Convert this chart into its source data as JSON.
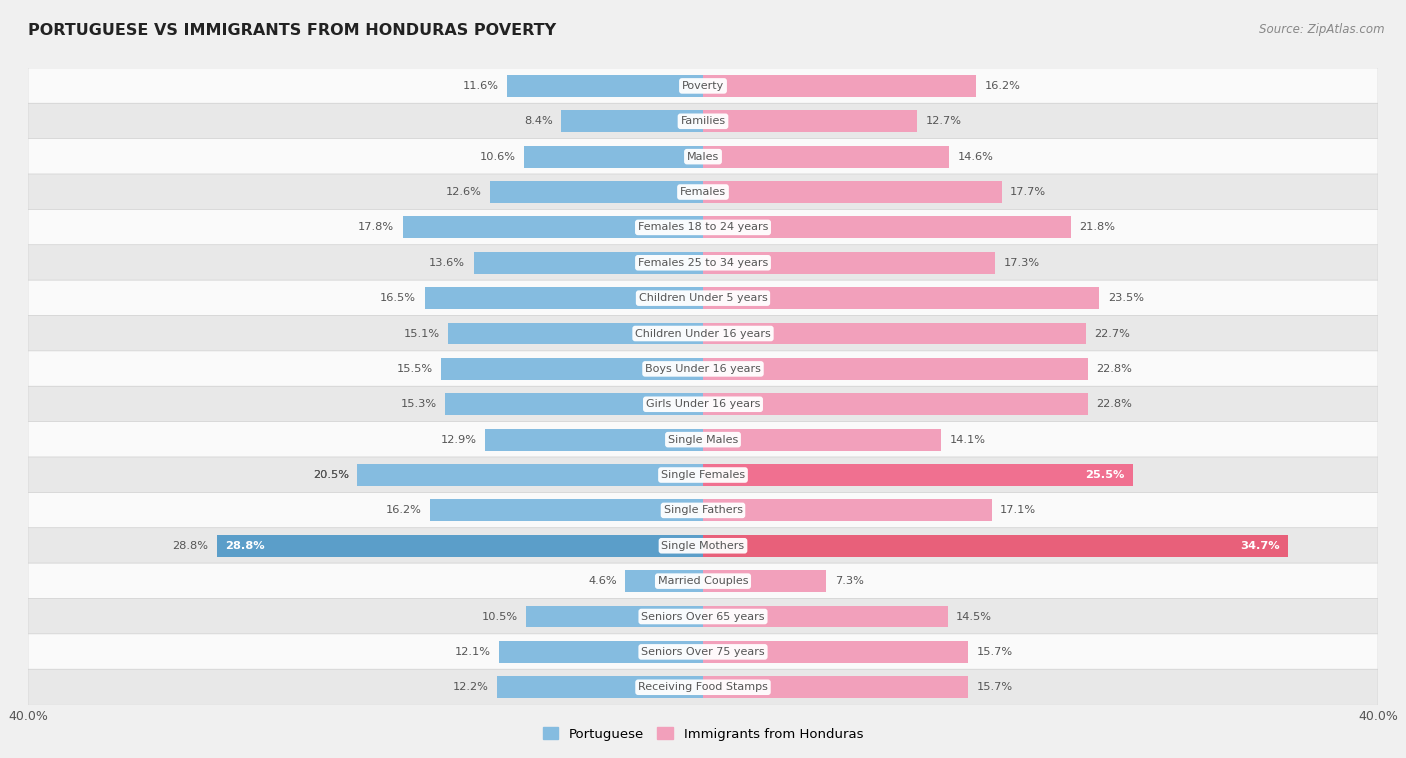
{
  "title": "PORTUGUESE VS IMMIGRANTS FROM HONDURAS POVERTY",
  "source": "Source: ZipAtlas.com",
  "categories": [
    "Poverty",
    "Families",
    "Males",
    "Females",
    "Females 18 to 24 years",
    "Females 25 to 34 years",
    "Children Under 5 years",
    "Children Under 16 years",
    "Boys Under 16 years",
    "Girls Under 16 years",
    "Single Males",
    "Single Females",
    "Single Fathers",
    "Single Mothers",
    "Married Couples",
    "Seniors Over 65 years",
    "Seniors Over 75 years",
    "Receiving Food Stamps"
  ],
  "portuguese": [
    11.6,
    8.4,
    10.6,
    12.6,
    17.8,
    13.6,
    16.5,
    15.1,
    15.5,
    15.3,
    12.9,
    20.5,
    16.2,
    28.8,
    4.6,
    10.5,
    12.1,
    12.2
  ],
  "honduras": [
    16.2,
    12.7,
    14.6,
    17.7,
    21.8,
    17.3,
    23.5,
    22.7,
    22.8,
    22.8,
    14.1,
    25.5,
    17.1,
    34.7,
    7.3,
    14.5,
    15.7,
    15.7
  ],
  "portuguese_color": "#85bce0",
  "honduras_color": "#f2a0bb",
  "portuguese_label_color": "#85bce0",
  "honduras_label_color": "#f2a0bb",
  "single_females_honduras_color": "#f07090",
  "single_mothers_port_color": "#5b9ec9",
  "single_mothers_hond_color": "#e8607a",
  "background_color": "#f0f0f0",
  "row_color_light": "#fafafa",
  "row_color_dark": "#e8e8e8",
  "row_border_color": "#d0d0d0",
  "text_color": "#555555",
  "label_bg_color": "#ffffff",
  "xlim": 40.0,
  "legend_portuguese": "Portuguese",
  "legend_honduras": "Immigrants from Honduras"
}
